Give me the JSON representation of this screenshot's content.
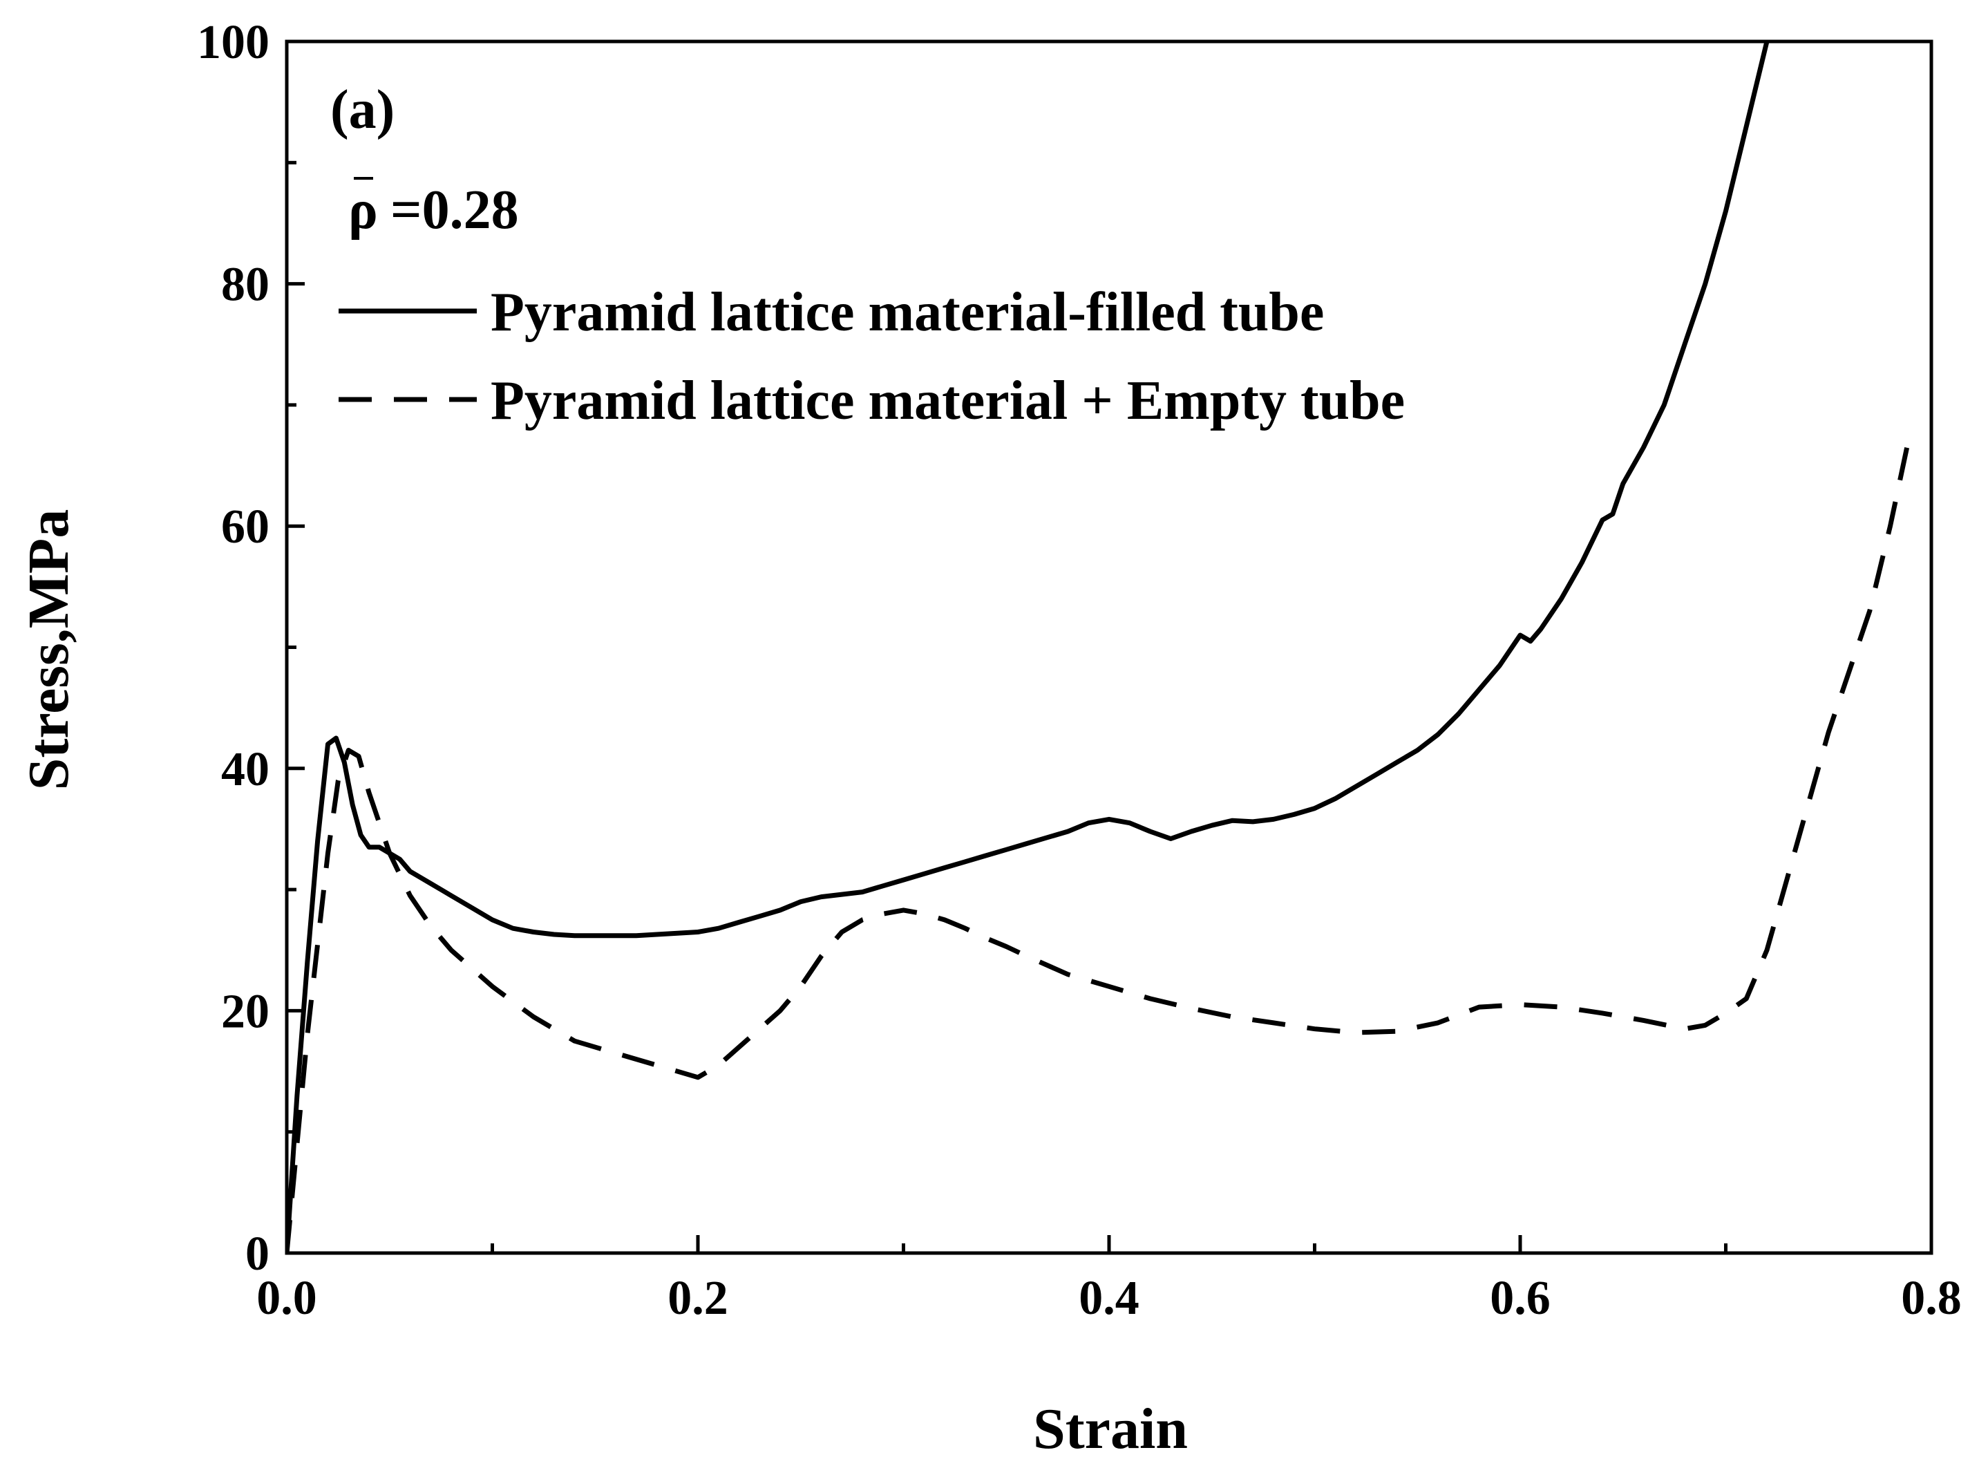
{
  "chart_data": {
    "type": "line",
    "title": "",
    "panel_label": "(a)",
    "annotation": {
      "symbol": "ρ",
      "text": "=0.28"
    },
    "xlabel": "Strain",
    "ylabel": "Stress,MPa",
    "xlim": [
      0.0,
      0.8
    ],
    "ylim": [
      0,
      100
    ],
    "x_ticks": [
      0.0,
      0.2,
      0.4,
      0.6,
      0.8
    ],
    "x_tick_labels": [
      "0.0",
      "0.2",
      "0.4",
      "0.6",
      "0.8"
    ],
    "y_ticks": [
      0,
      20,
      40,
      60,
      80,
      100
    ],
    "y_tick_labels": [
      "0",
      "20",
      "40",
      "60",
      "80",
      "100"
    ],
    "grid": false,
    "legend_position": "top-left",
    "series": [
      {
        "name": "Pyramid lattice material-filled tube",
        "style": "solid",
        "x": [
          0.0,
          0.005,
          0.01,
          0.015,
          0.02,
          0.024,
          0.028,
          0.032,
          0.036,
          0.04,
          0.045,
          0.05,
          0.055,
          0.06,
          0.07,
          0.08,
          0.09,
          0.1,
          0.11,
          0.12,
          0.13,
          0.14,
          0.15,
          0.16,
          0.17,
          0.18,
          0.19,
          0.2,
          0.21,
          0.22,
          0.23,
          0.24,
          0.25,
          0.26,
          0.27,
          0.28,
          0.29,
          0.3,
          0.31,
          0.32,
          0.33,
          0.34,
          0.35,
          0.36,
          0.37,
          0.38,
          0.39,
          0.4,
          0.41,
          0.42,
          0.43,
          0.44,
          0.45,
          0.46,
          0.47,
          0.48,
          0.49,
          0.5,
          0.51,
          0.52,
          0.53,
          0.54,
          0.55,
          0.56,
          0.57,
          0.58,
          0.59,
          0.6,
          0.605,
          0.61,
          0.62,
          0.63,
          0.64,
          0.645,
          0.65,
          0.66,
          0.67,
          0.68,
          0.69,
          0.7,
          0.71,
          0.72
        ],
        "values": [
          0,
          13,
          24,
          34,
          42,
          42.5,
          40.5,
          37,
          34.5,
          33.5,
          33.5,
          33,
          32.5,
          31.5,
          30.5,
          29.5,
          28.5,
          27.5,
          26.8,
          26.5,
          26.3,
          26.2,
          26.2,
          26.2,
          26.2,
          26.3,
          26.4,
          26.5,
          26.8,
          27.3,
          27.8,
          28.3,
          29.0,
          29.4,
          29.6,
          29.8,
          30.3,
          30.8,
          31.3,
          31.8,
          32.3,
          32.8,
          33.3,
          33.8,
          34.3,
          34.8,
          35.5,
          35.8,
          35.5,
          34.8,
          34.2,
          34.8,
          35.3,
          35.7,
          35.6,
          35.8,
          36.2,
          36.7,
          37.5,
          38.5,
          39.5,
          40.5,
          41.5,
          42.8,
          44.5,
          46.5,
          48.5,
          51.0,
          50.5,
          51.5,
          54.0,
          57.0,
          60.5,
          61.0,
          63.5,
          66.5,
          70.0,
          75.0,
          80.0,
          86.0,
          93.0,
          100.0
        ]
      },
      {
        "name": "Pyramid lattice material + Empty tube",
        "style": "dashed",
        "x": [
          0.0,
          0.01,
          0.02,
          0.025,
          0.03,
          0.035,
          0.04,
          0.05,
          0.06,
          0.07,
          0.08,
          0.09,
          0.1,
          0.12,
          0.14,
          0.16,
          0.18,
          0.2,
          0.21,
          0.22,
          0.23,
          0.24,
          0.25,
          0.26,
          0.27,
          0.28,
          0.29,
          0.3,
          0.31,
          0.32,
          0.33,
          0.34,
          0.35,
          0.36,
          0.38,
          0.4,
          0.42,
          0.44,
          0.46,
          0.48,
          0.5,
          0.52,
          0.54,
          0.56,
          0.58,
          0.6,
          0.62,
          0.64,
          0.66,
          0.68,
          0.69,
          0.7,
          0.71,
          0.72,
          0.73,
          0.74,
          0.75,
          0.76,
          0.77,
          0.78,
          0.79
        ],
        "values": [
          0,
          18,
          33,
          39,
          41.5,
          41,
          38,
          33,
          29.5,
          27,
          25,
          23.5,
          22,
          19.5,
          17.5,
          16.5,
          15.5,
          14.5,
          15.5,
          17.0,
          18.5,
          20.0,
          22.0,
          24.5,
          26.5,
          27.5,
          28.0,
          28.3,
          28.0,
          27.5,
          26.8,
          26.0,
          25.3,
          24.5,
          23.0,
          22.0,
          21.0,
          20.2,
          19.5,
          19.0,
          18.5,
          18.2,
          18.3,
          19.0,
          20.3,
          20.5,
          20.3,
          19.8,
          19.2,
          18.5,
          18.8,
          19.8,
          21.0,
          25.0,
          31.0,
          37.0,
          43.0,
          48.0,
          53.0,
          60.0,
          68.0
        ]
      }
    ]
  }
}
